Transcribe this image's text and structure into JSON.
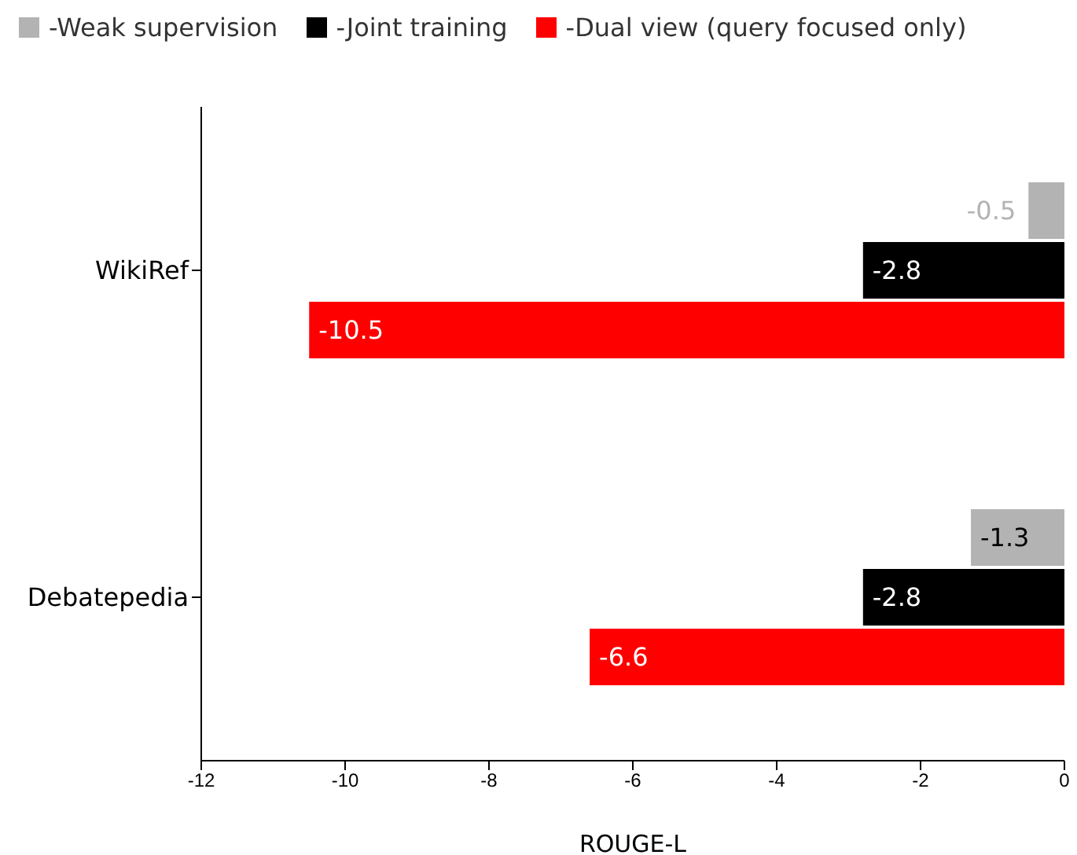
{
  "chart_data": {
    "type": "bar",
    "orientation": "horizontal",
    "xlabel": "ROUGE-L",
    "categories": [
      "WikiRef",
      "Debatepedia"
    ],
    "series": [
      {
        "name": "-Weak supervision",
        "color": "#b3b3b3",
        "values": [
          -0.5,
          -1.3
        ]
      },
      {
        "name": "-Joint training",
        "color": "#000000",
        "values": [
          -2.8,
          -2.8
        ]
      },
      {
        "name": "-Dual view (query focused only)",
        "color": "#ff0000",
        "values": [
          -10.5,
          -6.6
        ]
      }
    ],
    "xlim": [
      -12,
      0
    ],
    "xticks": [
      -12,
      -10,
      -8,
      -6,
      -4,
      -2,
      0
    ],
    "data_labels": true,
    "legend": "top",
    "grid": false
  }
}
